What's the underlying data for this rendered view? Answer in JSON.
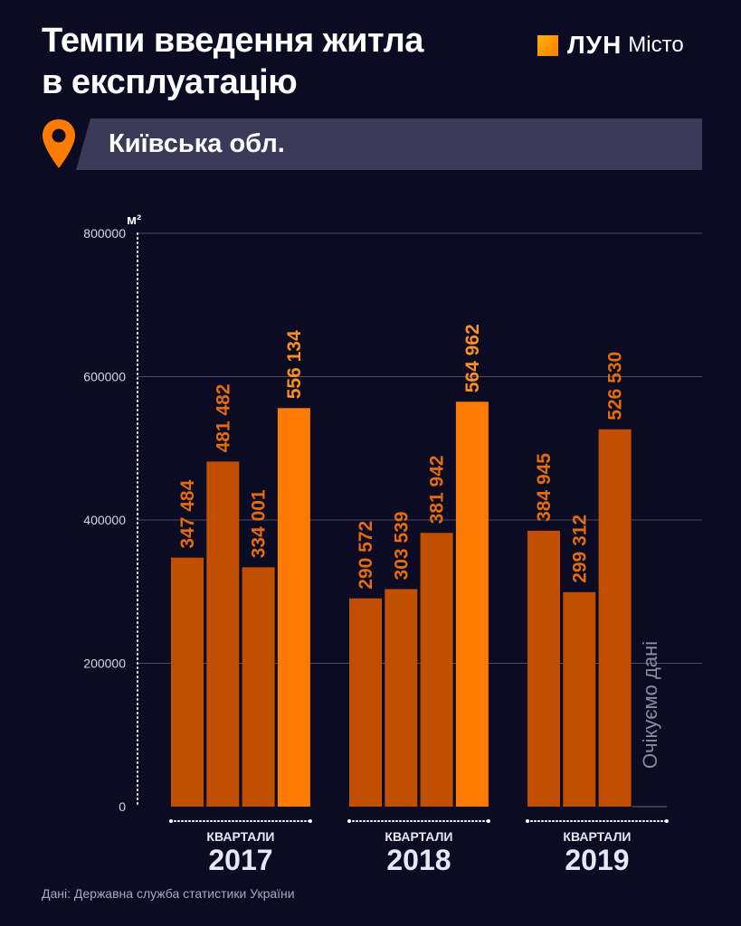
{
  "header": {
    "title_line1": "Темпи введення житла",
    "title_line2": "в експлуатацію",
    "logo_brand": "ЛУН",
    "logo_city": "Місто",
    "region": "Київська обл."
  },
  "colors": {
    "bar": "#c24f00",
    "bar_highlight": "#ff7a00",
    "label": "#e46c0c",
    "label_highlight": "#ff8f1f",
    "grid": "#4b4a68",
    "axis_text": "#d4d3ea"
  },
  "chart_data": {
    "type": "bar",
    "y_unit": "м²",
    "ylim": [
      0,
      800000
    ],
    "y_ticks": [
      0,
      200000,
      400000,
      600000,
      800000
    ],
    "y_tick_labels": [
      "0",
      "200000",
      "400000",
      "600000",
      "800000"
    ],
    "grid": true,
    "groups": [
      {
        "caption": "КВАРТАЛИ",
        "year": "2017",
        "values": [
          347484,
          481482,
          334001,
          556134
        ],
        "value_labels": [
          "347 484",
          "481 482",
          "334 001",
          "556 134"
        ]
      },
      {
        "caption": "КВАРТАЛИ",
        "year": "2018",
        "values": [
          290572,
          303539,
          381942,
          564962
        ],
        "value_labels": [
          "290 572",
          "303 539",
          "381 942",
          "564 962"
        ]
      },
      {
        "caption": "КВАРТАЛИ",
        "year": "2019",
        "values": [
          384945,
          299312,
          526530
        ],
        "value_labels": [
          "384 945",
          "299 312",
          "526 530"
        ],
        "pending_label": "Очікуємо дані"
      }
    ],
    "highlight": "fourth quarter"
  },
  "footer": {
    "source": "Дані: Державна служба статистики України"
  }
}
